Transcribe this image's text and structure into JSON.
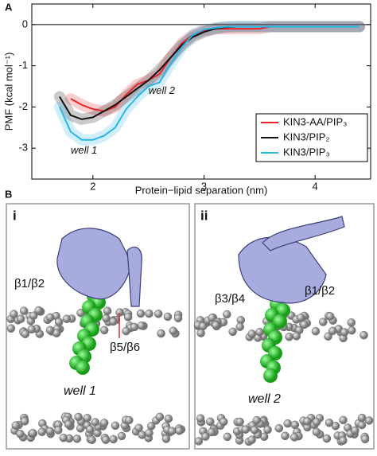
{
  "chart_data": {
    "type": "line",
    "panel_label": "A",
    "xlabel": "Protein−lipid separation (nm)",
    "ylabel": "PMF (kcal mol⁻¹)",
    "x": [
      1.7,
      1.8,
      1.9,
      2.0,
      2.1,
      2.2,
      2.3,
      2.4,
      2.5,
      2.6,
      2.7,
      2.8,
      2.9,
      3.0,
      3.1,
      3.2,
      3.3,
      3.4,
      3.5,
      3.6,
      3.7,
      3.8,
      3.9,
      4.0,
      4.1,
      4.2,
      4.3,
      4.4
    ],
    "series": [
      {
        "name": "KIN3-AA/PIP₃",
        "color": "#e8262a",
        "values": [
          null,
          -1.8,
          -1.95,
          -2.05,
          -2.1,
          -2.0,
          -1.7,
          -1.45,
          -1.35,
          -1.2,
          -0.8,
          -0.45,
          -0.25,
          -0.15,
          -0.1,
          -0.1,
          -0.1,
          -0.1,
          -0.1,
          -0.05,
          -0.05,
          -0.05,
          -0.05,
          -0.05,
          -0.05,
          -0.05,
          -0.05,
          -0.05
        ]
      },
      {
        "name": "KIN3/PIP₂",
        "color": "#111111",
        "values": [
          -1.75,
          -2.2,
          -2.3,
          -2.25,
          -2.1,
          -1.95,
          -1.75,
          -1.55,
          -1.35,
          -1.1,
          -0.8,
          -0.5,
          -0.3,
          -0.18,
          -0.1,
          -0.06,
          -0.05,
          -0.05,
          -0.05,
          -0.05,
          -0.05,
          -0.05,
          -0.05,
          -0.05,
          -0.05,
          -0.05,
          -0.05,
          -0.05
        ]
      },
      {
        "name": "KIN3/PIP₃",
        "color": "#29b5e8",
        "values": [
          -2.0,
          -2.6,
          -2.8,
          -2.8,
          -2.7,
          -2.5,
          -2.05,
          -1.75,
          -1.5,
          -1.4,
          -0.95,
          -0.55,
          -0.25,
          -0.12,
          -0.08,
          -0.05,
          -0.05,
          -0.05,
          -0.05,
          -0.05,
          -0.05,
          -0.05,
          -0.05,
          -0.05,
          -0.05,
          -0.05,
          -0.05,
          -0.05
        ]
      }
    ],
    "annotations": [
      "well 1",
      "well 2"
    ],
    "xlim": [
      1.45,
      4.5
    ],
    "ylim": [
      -3.75,
      0.5
    ],
    "xticks": [
      2,
      3,
      4
    ],
    "yticks": [
      -3,
      -2,
      -1,
      0
    ],
    "zero_line": true,
    "legend": "lower right"
  },
  "figure": {
    "panel_label": "B",
    "subpanels": [
      {
        "label": "i",
        "annotations": [
          "β1/β2",
          "β5/β6",
          "well 1"
        ]
      },
      {
        "label": "ii",
        "annotations": [
          "β3/β4",
          "β1/β2",
          "well 2"
        ]
      }
    ]
  }
}
